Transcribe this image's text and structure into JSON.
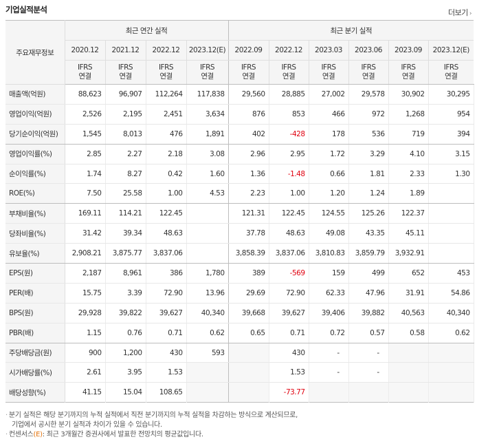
{
  "header": {
    "title": "기업실적분석",
    "more_label": "더보기",
    "more_arrow": "›"
  },
  "table": {
    "row_header_label": "주요재무정보",
    "groups": [
      {
        "label": "최근 연간 실적"
      },
      {
        "label": "최근 분기 실적"
      }
    ],
    "periods": [
      "2020.12",
      "2021.12",
      "2022.12",
      "2023.12(E)",
      "2022.09",
      "2022.12",
      "2023.03",
      "2023.06",
      "2023.09",
      "2023.12(E)"
    ],
    "basis_top": "IFRS",
    "basis_bottom": "연결",
    "rows": [
      {
        "label": "매출액(억원)",
        "values": [
          "88,623",
          "96,907",
          "112,264",
          "117,838",
          "29,560",
          "28,885",
          "27,002",
          "29,578",
          "30,902",
          "30,295"
        ]
      },
      {
        "label": "영업이익(억원)",
        "values": [
          "2,526",
          "2,195",
          "2,451",
          "3,634",
          "876",
          "853",
          "466",
          "972",
          "1,268",
          "954"
        ]
      },
      {
        "label": "당기순이익(억원)",
        "values": [
          "1,545",
          "8,013",
          "476",
          "1,891",
          "402",
          "-428",
          "178",
          "536",
          "719",
          "394"
        ]
      },
      {
        "label": "영업이익률(%)",
        "values": [
          "2.85",
          "2.27",
          "2.18",
          "3.08",
          "2.96",
          "2.95",
          "1.72",
          "3.29",
          "4.10",
          "3.15"
        ]
      },
      {
        "label": "순이익률(%)",
        "values": [
          "1.74",
          "8.27",
          "0.42",
          "1.60",
          "1.36",
          "-1.48",
          "0.66",
          "1.81",
          "2.33",
          "1.30"
        ]
      },
      {
        "label": "ROE(%)",
        "values": [
          "7.50",
          "25.58",
          "1.00",
          "4.53",
          "2.23",
          "1.00",
          "1.20",
          "1.24",
          "1.89",
          ""
        ]
      },
      {
        "label": "부채비율(%)",
        "values": [
          "169.11",
          "114.21",
          "122.45",
          "",
          "121.31",
          "122.45",
          "124.55",
          "125.26",
          "122.37",
          ""
        ]
      },
      {
        "label": "당좌비율(%)",
        "values": [
          "31.42",
          "39.34",
          "48.63",
          "",
          "37.78",
          "48.63",
          "49.08",
          "43.35",
          "45.11",
          ""
        ]
      },
      {
        "label": "유보율(%)",
        "values": [
          "2,908.21",
          "3,875.77",
          "3,837.06",
          "",
          "3,858.39",
          "3,837.06",
          "3,810.83",
          "3,859.79",
          "3,932.91",
          ""
        ]
      },
      {
        "label": "EPS(원)",
        "values": [
          "2,187",
          "8,961",
          "386",
          "1,780",
          "389",
          "-569",
          "159",
          "499",
          "652",
          "453"
        ]
      },
      {
        "label": "PER(배)",
        "values": [
          "15.75",
          "3.39",
          "72.90",
          "13.96",
          "29.69",
          "72.90",
          "62.33",
          "47.96",
          "31.91",
          "54.86"
        ]
      },
      {
        "label": "BPS(원)",
        "values": [
          "29,928",
          "39,822",
          "39,627",
          "40,340",
          "39,668",
          "39,627",
          "39,406",
          "39,882",
          "40,563",
          "40,340"
        ]
      },
      {
        "label": "PBR(배)",
        "values": [
          "1.15",
          "0.76",
          "0.71",
          "0.62",
          "0.65",
          "0.71",
          "0.72",
          "0.57",
          "0.58",
          "0.62"
        ]
      },
      {
        "label": "주당배당금(원)",
        "values": [
          "900",
          "1,200",
          "430",
          "593",
          "",
          "430",
          "-",
          "-",
          "",
          ""
        ]
      },
      {
        "label": "시가배당률(%)",
        "values": [
          "2.61",
          "3.95",
          "1.53",
          "",
          "",
          "1.53",
          "-",
          "-",
          "",
          ""
        ]
      },
      {
        "label": "배당성향(%)",
        "values": [
          "41.15",
          "15.04",
          "108.65",
          "",
          "",
          "-73.77",
          "",
          "",
          "",
          ""
        ]
      }
    ]
  },
  "notes": {
    "line1": "분기 실적은 해당 분기까지의 누적 실적에서 직전 분기까지의 누적 실적을 차감하는 방식으로 계산되므로,",
    "line2": "기업에서 공시한 분기 실적과 차이가 있을 수 있습니다.",
    "line3_prefix": "컨센서스",
    "line3_mark": "(E)",
    "line3_suffix": ": 최근 3개월간 증권사에서 발표한 전망치의 평균값입니다.",
    "bullet": "·"
  },
  "colors": {
    "accent": "#e4720a",
    "negative": "#e0000f",
    "header_bg": "#f5f5f5"
  }
}
